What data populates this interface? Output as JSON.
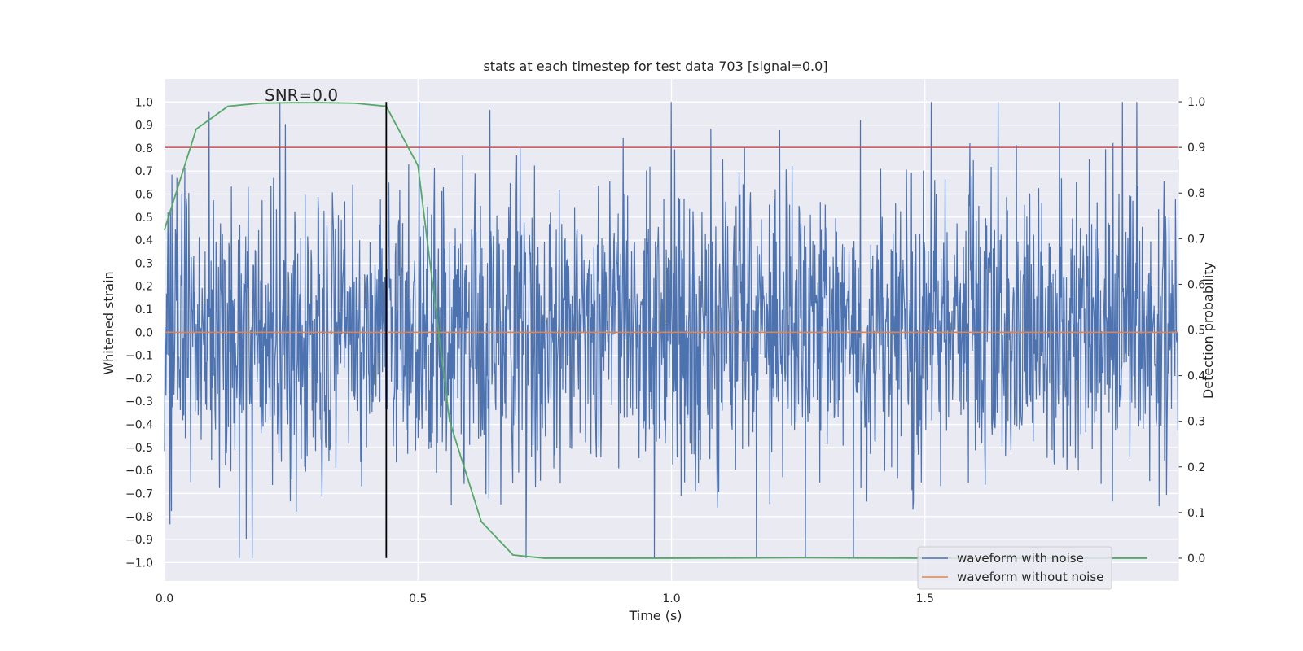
{
  "chart_data": {
    "type": "line",
    "title": "stats at each timestep for test data 703 [signal=0.0]",
    "xlabel": "Time (s)",
    "ylabel": "Whitened strain",
    "y2label": "Detection probability",
    "annotation": "SNR=0.0",
    "xlim": [
      0.0,
      2.0
    ],
    "ylim": [
      -1.08,
      1.1
    ],
    "y2lim": [
      -0.05,
      1.05
    ],
    "grid": true,
    "legend_position": "bottom-right",
    "x_ticks": [
      "0.0",
      "0.5",
      "1.0",
      "1.5"
    ],
    "y_ticks": [
      "1.0",
      "0.9",
      "0.8",
      "0.7",
      "0.6",
      "0.5",
      "0.4",
      "0.3",
      "0.2",
      "0.1",
      "0.0",
      "−0.1",
      "−0.2",
      "−0.3",
      "−0.4",
      "−0.5",
      "−0.6",
      "−0.7",
      "−0.8",
      "−0.9",
      "−1.0"
    ],
    "y2_ticks": [
      "1.0",
      "0.9",
      "0.8",
      "0.7",
      "0.6",
      "0.5",
      "0.4",
      "0.3",
      "0.2",
      "0.1",
      "0.0"
    ],
    "series": [
      {
        "name": "waveform with noise",
        "axis": "left",
        "color": "#4c72b0",
        "description": "dense noise time series, 2 s, amplitude roughly within ±1.0",
        "amplitude_range": [
          -0.98,
          1.0
        ]
      },
      {
        "name": "waveform without noise",
        "axis": "left",
        "color": "#dd8452",
        "x": [
          0.0,
          2.0
        ],
        "y": [
          0.0,
          0.0
        ]
      },
      {
        "axis": "right",
        "color": "#55a868",
        "x": [
          0.0,
          0.0625,
          0.125,
          0.1875,
          0.25,
          0.3125,
          0.375,
          0.4375,
          0.5,
          0.5625,
          0.625,
          0.6875,
          0.75,
          0.875,
          1.0,
          1.125,
          1.25,
          1.375,
          1.5,
          1.625,
          1.75,
          1.875,
          1.9375
        ],
        "y": [
          0.72,
          0.94,
          0.99,
          0.997,
          0.998,
          0.998,
          0.997,
          0.99,
          0.86,
          0.3,
          0.08,
          0.007,
          0.0,
          0.0,
          0.0,
          0.0005,
          0.001,
          0.0005,
          0.0,
          0.0,
          0.0,
          0.0,
          0.0
        ]
      }
    ],
    "threshold_line": {
      "axis": "right",
      "value": 0.9,
      "color": "#c44e52"
    },
    "event_marker": {
      "x": 0.4375,
      "y_range": [
        -0.98,
        1.0
      ],
      "color": "#000000"
    }
  }
}
